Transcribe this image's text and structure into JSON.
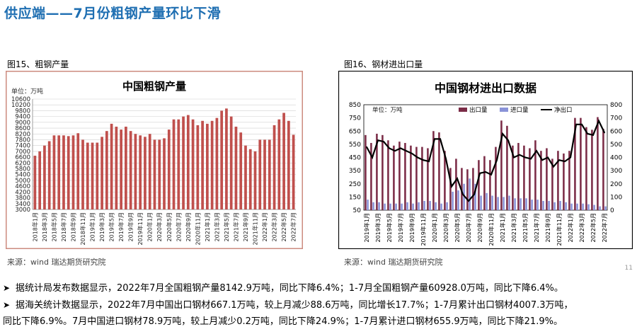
{
  "page": {
    "title": "供应端——7月份粗钢产量环比下滑",
    "fig1_label": "图15、粗钢产量",
    "fig2_label": "图16、钢材进出口量",
    "source1": "来源：wind   瑞达期货研究院",
    "source2": "来源：wind   瑞达期货研究院",
    "page_number": "11",
    "bullet1": "据统计局发布数据显示，2022年7月全国粗钢产量8142.9万吨，同比下降6.4%；1-7月全国粗钢产量60928.0万吨，同比下降6.4%。",
    "bullet2a": "据海关统计数据显示，2022年7月中国出口钢材667.1万吨，较上月减少88.6万吨，同比增长17.7%；1-7月累计出口钢材4007.3万吨，",
    "bullet2b": "同比下降6.9%。7月中国进口钢材78.9万吨，较上月减少0.2万吨，同比下降24.9%；1-7月累计进口钢材655.9万吨，同比下降21.9%。"
  },
  "colors": {
    "title": "#1f6fb2",
    "bar1": "#c0504d",
    "export": "#7b2c47",
    "import": "#8a93d8",
    "net": "#000000"
  },
  "chart_data": [
    {
      "type": "bar",
      "title": "中国粗钢产量",
      "unit_label": "单位：万吨",
      "ylim": [
        3000,
        10600
      ],
      "yticks": [
        3000,
        3400,
        3800,
        4200,
        4600,
        5000,
        5400,
        5800,
        6200,
        6600,
        7000,
        7400,
        7800,
        8200,
        8600,
        9000,
        9400,
        9800,
        10200,
        10600
      ],
      "grid": true,
      "categories": [
        "2018年1月",
        "2018年2月",
        "2018年3月",
        "2018年4月",
        "2018年5月",
        "2018年6月",
        "2018年7月",
        "2018年8月",
        "2018年9月",
        "2018年10月",
        "2018年11月",
        "2018年12月",
        "2019年1月",
        "2019年2月",
        "2019年3月",
        "2019年4月",
        "2019年5月",
        "2019年6月",
        "2019年7月",
        "2019年8月",
        "2019年9月",
        "2019年10月",
        "2019年11月",
        "2019年12月",
        "2020年1月",
        "2020年2月",
        "2020年3月",
        "2020年4月",
        "2020年5月",
        "2020年6月",
        "2020年7月",
        "2020年8月",
        "2020年9月",
        "2020年10月",
        "2020年11月",
        "2020年12月",
        "2021年1月",
        "2021年2月",
        "2021年3月",
        "2021年4月",
        "2021年5月",
        "2021年6月",
        "2021年7月",
        "2021年8月",
        "2021年9月",
        "2021年10月",
        "2021年11月",
        "2021年12月",
        "2022年1月",
        "2022年2月",
        "2022年3月",
        "2022年4月",
        "2022年5月",
        "2022年6月",
        "2022年7月"
      ],
      "tick_labels": [
        "2018年1月",
        "2018年3月",
        "2018年5月",
        "2018年7月",
        "2018年9月",
        "2018年11月",
        "2019年1月",
        "2019年3月",
        "2019年5月",
        "2019年7月",
        "2019年9月",
        "2019年11月",
        "2020年1月",
        "2020年3月",
        "2020年5月",
        "2020年7月",
        "2020年9月",
        "2020年11月",
        "2021年1月",
        "2021年3月",
        "2021年5月",
        "2021年7月",
        "2021年9月",
        "2021年11月",
        "2022年1月",
        "2022年3月",
        "2022年5月",
        "2022年7月"
      ],
      "values": [
        6700,
        7000,
        7400,
        7700,
        8100,
        8100,
        8100,
        8050,
        8100,
        8250,
        7800,
        7600,
        7600,
        7600,
        8000,
        8400,
        8900,
        8700,
        8500,
        8700,
        8400,
        8200,
        8100,
        8000,
        8200,
        7800,
        7800,
        7900,
        8500,
        9200,
        9200,
        9400,
        9500,
        9200,
        8800,
        9100,
        8900,
        9100,
        9300,
        9800,
        9950,
        9400,
        8700,
        8300,
        7400,
        7150,
        7000,
        7800,
        7800,
        7800,
        8800,
        9200,
        9650,
        9100,
        8140
      ]
    },
    {
      "type": "bar",
      "title": "中国钢材进出口数据",
      "unit_label": "单位：万吨",
      "y_left": [
        50,
        850
      ],
      "y_left_ticks": [
        50,
        150,
        250,
        350,
        450,
        550,
        650,
        750,
        850
      ],
      "y_right": [
        0,
        800
      ],
      "y_right_ticks": [
        0,
        100,
        200,
        300,
        400,
        500,
        600,
        700,
        800
      ],
      "grid": false,
      "legend_position": "top-right",
      "legend": [
        "出口量",
        "进口量",
        "净出口"
      ],
      "categories": [
        "2019年1月",
        "2019年2月",
        "2019年3月",
        "2019年4月",
        "2019年5月",
        "2019年6月",
        "2019年7月",
        "2019年8月",
        "2019年9月",
        "2019年10月",
        "2019年11月",
        "2019年12月",
        "2020年1月",
        "2020年2月",
        "2020年3月",
        "2020年4月",
        "2020年5月",
        "2020年6月",
        "2020年7月",
        "2020年8月",
        "2020年9月",
        "2020年10月",
        "2020年11月",
        "2020年12月",
        "2021年1月",
        "2021年2月",
        "2021年3月",
        "2021年4月",
        "2021年5月",
        "2021年6月",
        "2021年7月",
        "2021年8月",
        "2021年9月",
        "2021年10月",
        "2021年11月",
        "2021年12月",
        "2022年1月",
        "2022年2月",
        "2022年3月",
        "2022年4月",
        "2022年5月",
        "2022年6月",
        "2022年7月"
      ],
      "tick_labels": [
        "2019年1月",
        "2019年3月",
        "2019年5月",
        "2019年7月",
        "2019年9月",
        "2019年11月",
        "2020年1月",
        "2020年3月",
        "2020年5月",
        "2020年7月",
        "2020年9月",
        "2020年11月",
        "2021年1月",
        "2021年3月",
        "2021年5月",
        "2021年7月",
        "2021年9月",
        "2021年11月",
        "2022年1月",
        "2022年3月",
        "2022年5月",
        "2022年7月"
      ],
      "series": [
        {
          "name": "出口量",
          "axis": "left",
          "values": [
            620,
            560,
            630,
            620,
            580,
            540,
            570,
            560,
            540,
            530,
            530,
            520,
            650,
            640,
            500,
            370,
            440,
            370,
            360,
            370,
            430,
            460,
            430,
            530,
            730,
            690,
            540,
            560,
            540,
            520,
            580,
            500,
            520,
            440,
            500,
            480,
            500,
            750,
            750,
            680,
            660,
            756,
            667
          ]
        },
        {
          "name": "进口量",
          "axis": "left",
          "values": [
            130,
            110,
            110,
            100,
            100,
            100,
            100,
            110,
            100,
            110,
            120,
            120,
            110,
            100,
            110,
            190,
            200,
            250,
            290,
            250,
            160,
            180,
            160,
            150,
            150,
            160,
            140,
            140,
            140,
            130,
            130,
            120,
            120,
            110,
            120,
            110,
            100,
            100,
            100,
            95,
            90,
            79,
            79
          ]
        },
        {
          "name": "净出口",
          "axis": "right",
          "values": [
            480,
            400,
            530,
            520,
            470,
            450,
            470,
            450,
            430,
            400,
            380,
            370,
            540,
            540,
            390,
            180,
            240,
            120,
            70,
            120,
            280,
            290,
            270,
            380,
            580,
            530,
            400,
            420,
            400,
            390,
            450,
            380,
            400,
            330,
            380,
            370,
            400,
            650,
            650,
            580,
            570,
            677,
            588
          ]
        }
      ]
    }
  ]
}
